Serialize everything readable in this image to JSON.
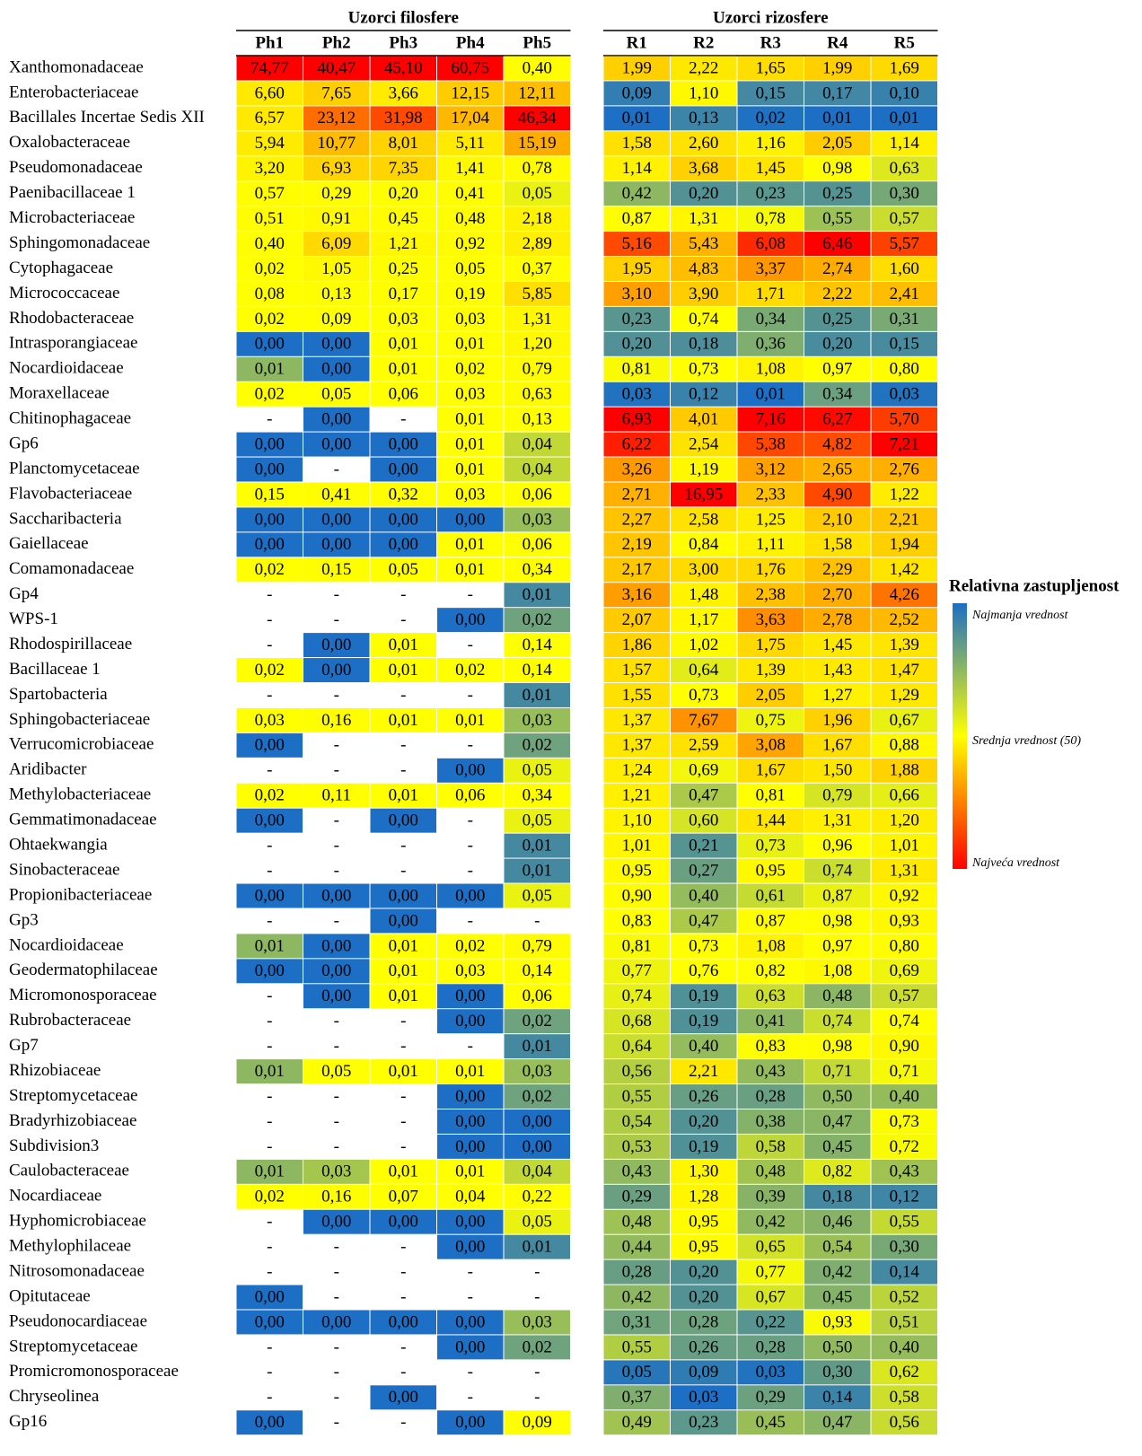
{
  "table": {
    "groups": [
      {
        "title": "Uzorci filosfere",
        "columns": [
          "Ph1",
          "Ph2",
          "Ph3",
          "Ph4",
          "Ph5"
        ]
      },
      {
        "title": "Uzorci rizosfere",
        "columns": [
          "R1",
          "R2",
          "R3",
          "R4",
          "R5"
        ]
      }
    ],
    "rows": [
      {
        "label": "Xanthomonadaceae",
        "cells": [
          "74,77",
          "40,47",
          "45,10",
          "60,75",
          "0,40",
          "1,99",
          "2,22",
          "1,65",
          "1,99",
          "1,69"
        ]
      },
      {
        "label": "Enterobacteriaceae",
        "cells": [
          "6,60",
          "7,65",
          "3,66",
          "12,15",
          "12,11",
          "0,09",
          "1,10",
          "0,15",
          "0,17",
          "0,10"
        ]
      },
      {
        "label": "Bacillales Incertae Sedis XII",
        "cells": [
          "6,57",
          "23,12",
          "31,98",
          "17,04",
          "46,34",
          "0,01",
          "0,13",
          "0,02",
          "0,01",
          "0,01"
        ]
      },
      {
        "label": "Oxalobacteraceae",
        "cells": [
          "5,94",
          "10,77",
          "8,01",
          "5,11",
          "15,19",
          "1,58",
          "2,60",
          "1,16",
          "2,05",
          "1,14"
        ]
      },
      {
        "label": "Pseudomonadaceae",
        "cells": [
          "3,20",
          "6,93",
          "7,35",
          "1,41",
          "0,78",
          "1,14",
          "3,68",
          "1,45",
          "0,98",
          "0,63"
        ]
      },
      {
        "label": "Paenibacillaceae 1",
        "cells": [
          "0,57",
          "0,29",
          "0,20",
          "0,41",
          "0,05",
          "0,42",
          "0,20",
          "0,23",
          "0,25",
          "0,30"
        ]
      },
      {
        "label": "Microbacteriaceae",
        "cells": [
          "0,51",
          "0,91",
          "0,45",
          "0,48",
          "2,18",
          "0,87",
          "1,31",
          "0,78",
          "0,55",
          "0,57"
        ]
      },
      {
        "label": "Sphingomonadaceae",
        "cells": [
          "0,40",
          "6,09",
          "1,21",
          "0,92",
          "2,89",
          "5,16",
          "5,43",
          "6,08",
          "6,46",
          "5,57"
        ]
      },
      {
        "label": "Cytophagaceae",
        "cells": [
          "0,02",
          "1,05",
          "0,25",
          "0,05",
          "0,37",
          "1,95",
          "4,83",
          "3,37",
          "2,74",
          "1,60"
        ]
      },
      {
        "label": "Micrococcaceae",
        "cells": [
          "0,08",
          "0,13",
          "0,17",
          "0,19",
          "5,85",
          "3,10",
          "3,90",
          "1,71",
          "2,22",
          "2,41"
        ]
      },
      {
        "label": "Rhodobacteraceae",
        "cells": [
          "0,02",
          "0,09",
          "0,03",
          "0,03",
          "1,31",
          "0,23",
          "0,74",
          "0,34",
          "0,25",
          "0,31"
        ]
      },
      {
        "label": "Intrasporangiaceae",
        "cells": [
          "0,00",
          "0,00",
          "0,01",
          "0,01",
          "1,20",
          "0,20",
          "0,18",
          "0,36",
          "0,20",
          "0,15"
        ]
      },
      {
        "label": "Nocardioidaceae",
        "cells": [
          "0,01",
          "0,00",
          "0,01",
          "0,02",
          "0,79",
          "0,81",
          "0,73",
          "1,08",
          "0,97",
          "0,80"
        ]
      },
      {
        "label": "Moraxellaceae",
        "cells": [
          "0,02",
          "0,05",
          "0,06",
          "0,03",
          "0,63",
          "0,03",
          "0,12",
          "0,01",
          "0,34",
          "0,03"
        ]
      },
      {
        "label": "Chitinophagaceae",
        "cells": [
          "-",
          "0,00",
          "-",
          "0,01",
          "0,13",
          "6,93",
          "4,01",
          "7,16",
          "6,27",
          "5,70"
        ]
      },
      {
        "label": "Gp6",
        "cells": [
          "0,00",
          "0,00",
          "0,00",
          "0,01",
          "0,04",
          "6,22",
          "2,54",
          "5,38",
          "4,82",
          "7,21"
        ]
      },
      {
        "label": "Planctomycetaceae",
        "cells": [
          "0,00",
          "-",
          "0,00",
          "0,01",
          "0,04",
          "3,26",
          "1,19",
          "3,12",
          "2,65",
          "2,76"
        ]
      },
      {
        "label": "Flavobacteriaceae",
        "cells": [
          "0,15",
          "0,41",
          "0,32",
          "0,03",
          "0,06",
          "2,71",
          "16,95",
          "2,33",
          "4,90",
          "1,22"
        ]
      },
      {
        "label": "Saccharibacteria",
        "cells": [
          "0,00",
          "0,00",
          "0,00",
          "0,00",
          "0,03",
          "2,27",
          "2,58",
          "1,25",
          "2,10",
          "2,21"
        ]
      },
      {
        "label": "Gaiellaceae",
        "cells": [
          "0,00",
          "0,00",
          "0,00",
          "0,01",
          "0,06",
          "2,19",
          "0,84",
          "1,11",
          "1,58",
          "1,94"
        ]
      },
      {
        "label": "Comamonadaceae",
        "cells": [
          "0,02",
          "0,15",
          "0,05",
          "0,01",
          "0,34",
          "2,17",
          "3,00",
          "1,76",
          "2,29",
          "1,42"
        ]
      },
      {
        "label": "Gp4",
        "cells": [
          "-",
          "-",
          "-",
          "-",
          "0,01",
          "3,16",
          "1,48",
          "2,38",
          "2,70",
          "4,26"
        ]
      },
      {
        "label": "WPS-1",
        "cells": [
          "-",
          "-",
          "-",
          "0,00",
          "0,02",
          "2,07",
          "1,17",
          "3,63",
          "2,78",
          "2,52"
        ]
      },
      {
        "label": "Rhodospirillaceae",
        "cells": [
          "-",
          "0,00",
          "0,01",
          "-",
          "0,14",
          "1,86",
          "1,02",
          "1,75",
          "1,45",
          "1,39"
        ]
      },
      {
        "label": "Bacillaceae 1",
        "cells": [
          "0,02",
          "0,00",
          "0,01",
          "0,02",
          "0,14",
          "1,57",
          "0,64",
          "1,39",
          "1,43",
          "1,47"
        ]
      },
      {
        "label": "Spartobacteria",
        "cells": [
          "-",
          "-",
          "-",
          "-",
          "0,01",
          "1,55",
          "0,73",
          "2,05",
          "1,27",
          "1,29"
        ]
      },
      {
        "label": "Sphingobacteriaceae",
        "cells": [
          "0,03",
          "0,16",
          "0,01",
          "0,01",
          "0,03",
          "1,37",
          "7,67",
          "0,75",
          "1,96",
          "0,67"
        ]
      },
      {
        "label": "Verrucomicrobiaceae",
        "cells": [
          "0,00",
          "-",
          "-",
          "-",
          "0,02",
          "1,37",
          "2,59",
          "3,08",
          "1,67",
          "0,88"
        ]
      },
      {
        "label": "Aridibacter",
        "cells": [
          "-",
          "-",
          "-",
          "0,00",
          "0,05",
          "1,24",
          "0,69",
          "1,67",
          "1,50",
          "1,88"
        ]
      },
      {
        "label": "Methylobacteriaceae",
        "cells": [
          "0,02",
          "0,11",
          "0,01",
          "0,06",
          "0,34",
          "1,21",
          "0,47",
          "0,81",
          "0,79",
          "0,66"
        ]
      },
      {
        "label": "Gemmatimonadaceae",
        "cells": [
          "0,00",
          "-",
          "0,00",
          "-",
          "0,05",
          "1,10",
          "0,60",
          "1,44",
          "1,31",
          "1,20"
        ]
      },
      {
        "label": "Ohtaekwangia",
        "cells": [
          "-",
          "-",
          "-",
          "-",
          "0,01",
          "1,01",
          "0,21",
          "0,73",
          "0,96",
          "1,01"
        ]
      },
      {
        "label": "Sinobacteraceae",
        "cells": [
          "-",
          "-",
          "-",
          "-",
          "0,01",
          "0,95",
          "0,27",
          "0,95",
          "0,74",
          "1,31"
        ]
      },
      {
        "label": "Propionibacteriaceae",
        "cells": [
          "0,00",
          "0,00",
          "0,00",
          "0,00",
          "0,05",
          "0,90",
          "0,40",
          "0,61",
          "0,87",
          "0,92"
        ]
      },
      {
        "label": "Gp3",
        "cells": [
          "-",
          "-",
          "0,00",
          "-",
          "-",
          "0,83",
          "0,47",
          "0,87",
          "0,98",
          "0,93"
        ]
      },
      {
        "label": "Nocardioidaceae",
        "cells": [
          "0,01",
          "0,00",
          "0,01",
          "0,02",
          "0,79",
          "0,81",
          "0,73",
          "1,08",
          "0,97",
          "0,80"
        ]
      },
      {
        "label": "Geodermatophilaceae",
        "cells": [
          "0,00",
          "0,00",
          "0,01",
          "0,03",
          "0,14",
          "0,77",
          "0,76",
          "0,82",
          "1,08",
          "0,69"
        ]
      },
      {
        "label": "Micromonosporaceae",
        "cells": [
          "-",
          "0,00",
          "0,01",
          "0,00",
          "0,06",
          "0,74",
          "0,19",
          "0,63",
          "0,48",
          "0,57"
        ]
      },
      {
        "label": "Rubrobacteraceae",
        "cells": [
          "-",
          "-",
          "-",
          "0,00",
          "0,02",
          "0,68",
          "0,19",
          "0,41",
          "0,74",
          "0,74"
        ]
      },
      {
        "label": "Gp7",
        "cells": [
          "-",
          "-",
          "-",
          "-",
          "0,01",
          "0,64",
          "0,40",
          "0,83",
          "0,98",
          "0,90"
        ]
      },
      {
        "label": "Rhizobiaceae",
        "cells": [
          "0,01",
          "0,05",
          "0,01",
          "0,01",
          "0,03",
          "0,56",
          "2,21",
          "0,43",
          "0,71",
          "0,71"
        ]
      },
      {
        "label": "Streptomycetaceae",
        "cells": [
          "-",
          "-",
          "-",
          "0,00",
          "0,02",
          "0,55",
          "0,26",
          "0,28",
          "0,50",
          "0,40"
        ]
      },
      {
        "label": "Bradyrhizobiaceae",
        "cells": [
          "-",
          "-",
          "-",
          "0,00",
          "0,00",
          "0,54",
          "0,20",
          "0,38",
          "0,47",
          "0,73"
        ]
      },
      {
        "label": "Subdivision3",
        "cells": [
          "-",
          "-",
          "-",
          "0,00",
          "0,00",
          "0,53",
          "0,19",
          "0,58",
          "0,45",
          "0,72"
        ]
      },
      {
        "label": "Caulobacteraceae",
        "cells": [
          "0,01",
          "0,03",
          "0,01",
          "0,01",
          "0,04",
          "0,43",
          "1,30",
          "0,48",
          "0,82",
          "0,43"
        ]
      },
      {
        "label": "Nocardiaceae",
        "cells": [
          "0,02",
          "0,16",
          "0,07",
          "0,04",
          "0,22",
          "0,29",
          "1,28",
          "0,39",
          "0,18",
          "0,12"
        ]
      },
      {
        "label": "Hyphomicrobiaceae",
        "cells": [
          "-",
          "0,00",
          "0,00",
          "0,00",
          "0,05",
          "0,48",
          "0,95",
          "0,42",
          "0,46",
          "0,55"
        ]
      },
      {
        "label": "Methylophilaceae",
        "cells": [
          "-",
          "-",
          "-",
          "0,00",
          "0,01",
          "0,44",
          "0,95",
          "0,65",
          "0,54",
          "0,30"
        ]
      },
      {
        "label": "Nitrosomonadaceae",
        "cells": [
          "-",
          "-",
          "-",
          "-",
          "-",
          "0,28",
          "0,20",
          "0,77",
          "0,42",
          "0,14"
        ]
      },
      {
        "label": "Opitutaceae",
        "cells": [
          "0,00",
          "-",
          "-",
          "-",
          "-",
          "0,42",
          "0,20",
          "0,67",
          "0,45",
          "0,52"
        ]
      },
      {
        "label": "Pseudonocardiaceae",
        "cells": [
          "0,00",
          "0,00",
          "0,00",
          "0,00",
          "0,03",
          "0,31",
          "0,28",
          "0,22",
          "0,93",
          "0,51"
        ]
      },
      {
        "label": "Streptomycetaceae",
        "cells": [
          "-",
          "-",
          "-",
          "0,00",
          "0,02",
          "0,55",
          "0,26",
          "0,28",
          "0,50",
          "0,40"
        ]
      },
      {
        "label": "Promicromonosporaceae",
        "cells": [
          "-",
          "-",
          "-",
          "-",
          "-",
          "0,05",
          "0,09",
          "0,03",
          "0,30",
          "0,62"
        ]
      },
      {
        "label": "Chryseolinea",
        "cells": [
          "-",
          "-",
          "0,00",
          "-",
          "-",
          "0,37",
          "0,03",
          "0,29",
          "0,14",
          "0,58"
        ]
      },
      {
        "label": "Gp16",
        "cells": [
          "0,00",
          "-",
          "-",
          "0,00",
          "0,09",
          "0,49",
          "0,23",
          "0,45",
          "0,47",
          "0,56"
        ]
      }
    ]
  },
  "legend": {
    "title": "Relativna zastupljenost",
    "labels": [
      "Najmanja vrednost",
      "Srednja vrednost (50)",
      "Najveća vrednost"
    ],
    "colors": [
      "#1c6fc4",
      "#ffff00",
      "#ff0000"
    ]
  }
}
